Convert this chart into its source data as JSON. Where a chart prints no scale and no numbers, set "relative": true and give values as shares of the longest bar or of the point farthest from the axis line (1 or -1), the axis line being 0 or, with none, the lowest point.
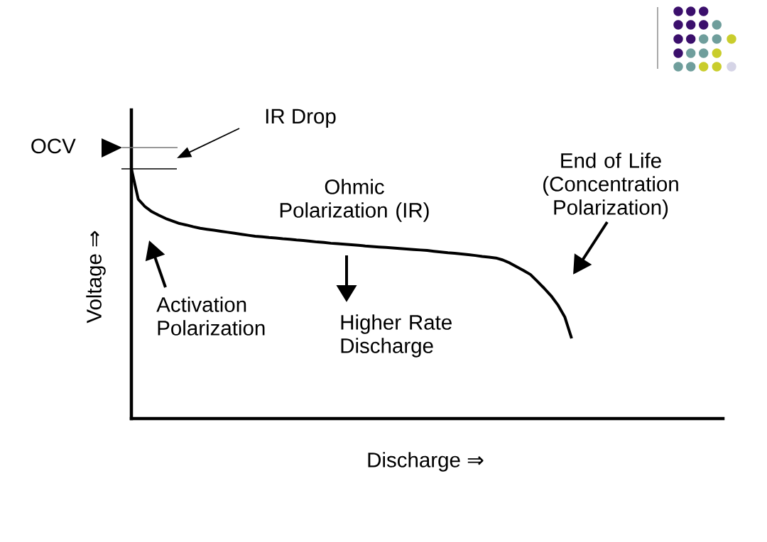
{
  "chart_data": {
    "type": "line",
    "relative": true,
    "xlabel": "Discharge ⇒",
    "ylabel": "Voltage ⇒",
    "categories": [
      null,
      null,
      null,
      null,
      null,
      null,
      null,
      null,
      null,
      null,
      null,
      null,
      null,
      null,
      null,
      null,
      null,
      null,
      null,
      null,
      null,
      null,
      null,
      null,
      null,
      null,
      null,
      null,
      null,
      null,
      null,
      null,
      null,
      null,
      null,
      null,
      null,
      null,
      null,
      null,
      null,
      null,
      null,
      null,
      null,
      null,
      null,
      null,
      null,
      null,
      null,
      null,
      null,
      null,
      null,
      null,
      null,
      null,
      null,
      null,
      null,
      null,
      null,
      null,
      null,
      null,
      null,
      null,
      null,
      null,
      null,
      null,
      null,
      null,
      null,
      null,
      null,
      null,
      null,
      null,
      null,
      null,
      null,
      null,
      null,
      null,
      null
    ],
    "series": [
      {
        "color": "#000000",
        "values": [
          1.0,
          0.878,
          0.848,
          0.828,
          0.814,
          0.801,
          0.791,
          0.781,
          0.775,
          0.768,
          0.762,
          0.758,
          0.754,
          0.75,
          0.746,
          0.742,
          0.738,
          0.734,
          0.73,
          0.728,
          0.725,
          0.723,
          0.72,
          0.718,
          0.715,
          0.713,
          0.71,
          0.707,
          0.705,
          0.702,
          0.7,
          0.698,
          0.696,
          0.694,
          0.691,
          0.689,
          0.687,
          0.685,
          0.683,
          0.681,
          0.679,
          0.677,
          0.675,
          0.673,
          0.67,
          0.667,
          0.664,
          0.662,
          0.659,
          0.656,
          0.653,
          0.649,
          0.646,
          0.643,
          0.635,
          0.623,
          0.608,
          0.593,
          0.577,
          0.55,
          0.522,
          0.492,
          0.455,
          0.407,
          0.321,
          null,
          null,
          null,
          null,
          null,
          null,
          null,
          null,
          null,
          null,
          null,
          null,
          null,
          null,
          null,
          null,
          null,
          null,
          null,
          null,
          null,
          null
        ]
      }
    ],
    "annotations": [
      "OCV",
      "IR Drop",
      "Ohmic Polarization (IR)",
      "End of Life (Concentration Polarization)",
      "Activation Polarization",
      "Higher Rate Discharge"
    ],
    "marker": "none",
    "line_style": "solid"
  }
}
